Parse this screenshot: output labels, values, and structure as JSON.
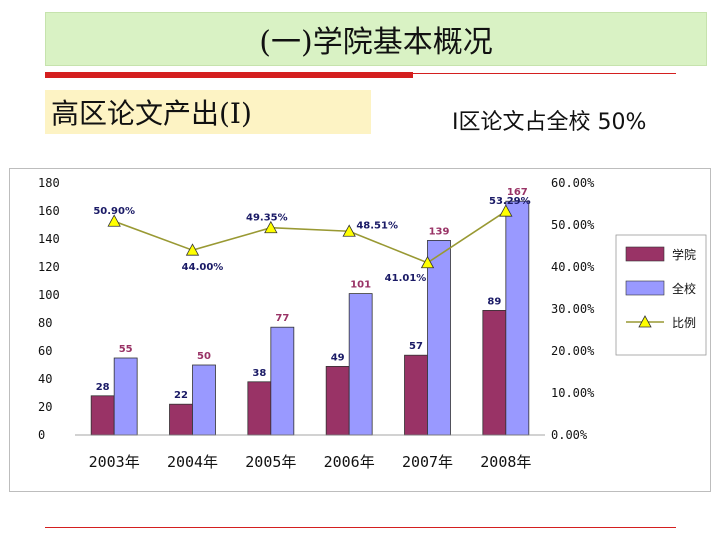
{
  "header": {
    "title": "(一)学院基本概况",
    "subtitle": "高区论文产出(I)",
    "note": "I区论文占全校 50%"
  },
  "colors": {
    "college": "#993366",
    "school": "#9999ff",
    "ratio": "#999933",
    "ratio_marker": "#ffff00",
    "red_rule": "#d41f1f"
  },
  "chart_data": {
    "type": "bar",
    "categories": [
      "2003年",
      "2004年",
      "2005年",
      "2006年",
      "2007年",
      "2008年"
    ],
    "series": [
      {
        "name": "学院",
        "type": "bar",
        "values": [
          28,
          22,
          38,
          49,
          57,
          89
        ]
      },
      {
        "name": "全校",
        "type": "bar",
        "values": [
          55,
          50,
          77,
          101,
          139,
          167
        ]
      },
      {
        "name": "比例",
        "type": "line",
        "axis": "right",
        "values": [
          50.9,
          44.0,
          49.35,
          48.51,
          41.01,
          53.29
        ]
      }
    ],
    "ratio_labels": [
      "50.90%",
      "44.00%",
      "49.35%",
      "48.51%",
      "41.01%",
      "53.29%"
    ],
    "ylim": [
      0,
      180
    ],
    "yticks": [
      "0",
      "20",
      "40",
      "60",
      "80",
      "100",
      "120",
      "140",
      "160",
      "180"
    ],
    "y2lim": [
      0,
      60
    ],
    "y2ticks": [
      "0.00%",
      "10.00%",
      "20.00%",
      "30.00%",
      "40.00%",
      "50.00%",
      "60.00%"
    ],
    "legend": [
      "学院",
      "全校",
      "比例"
    ],
    "legend_position": "right",
    "grid": false
  }
}
